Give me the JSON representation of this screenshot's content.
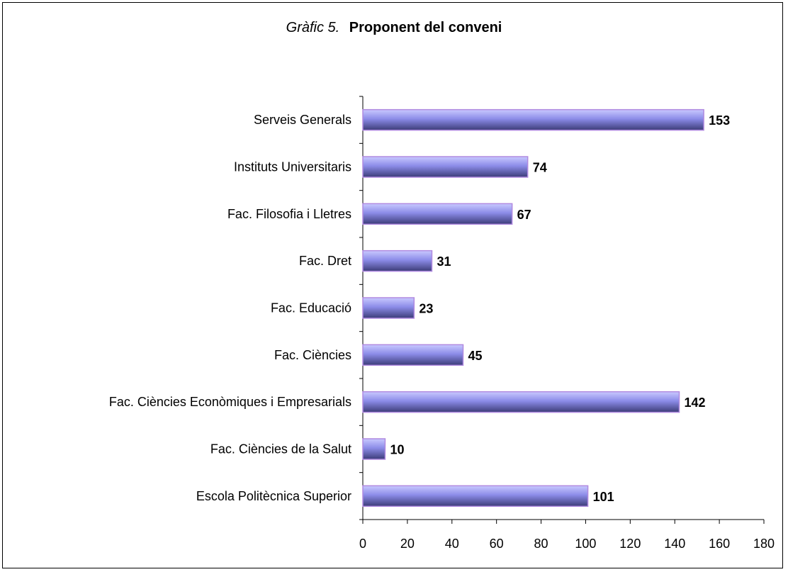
{
  "chart_data": {
    "type": "bar",
    "orientation": "horizontal",
    "title_prefix": "Gràfic 5.",
    "title": "Proponent del conveni",
    "xlabel": "",
    "ylabel": "",
    "categories": [
      "Serveis Generals",
      "Instituts Universitaris",
      "Fac. Filosofia i Lletres",
      "Fac. Dret",
      "Fac. Educació",
      "Fac. Ciències",
      "Fac. Ciències Econòmiques i Empresarials",
      "Fac. Ciències de la Salut",
      "Escola Politècnica Superior"
    ],
    "values": [
      153,
      74,
      67,
      31,
      23,
      45,
      142,
      10,
      101
    ],
    "value_labels": [
      "153",
      "74",
      "67",
      "31",
      "23",
      "45",
      "142",
      "10",
      "101"
    ],
    "xlim": [
      0,
      180
    ],
    "ticks": [
      0,
      20,
      40,
      60,
      80,
      100,
      120,
      140,
      160,
      180
    ],
    "tick_labels": [
      "0",
      "20",
      "40",
      "60",
      "80",
      "100",
      "120",
      "140",
      "160",
      "180"
    ],
    "grid": false,
    "legend": "none",
    "colors": {
      "bar_light": "#c9c9ff",
      "bar_mid": "#8c8ce8",
      "bar_dark": "#3c3c78",
      "bar_edge": "#b08ae0",
      "axis": "#000000"
    }
  }
}
